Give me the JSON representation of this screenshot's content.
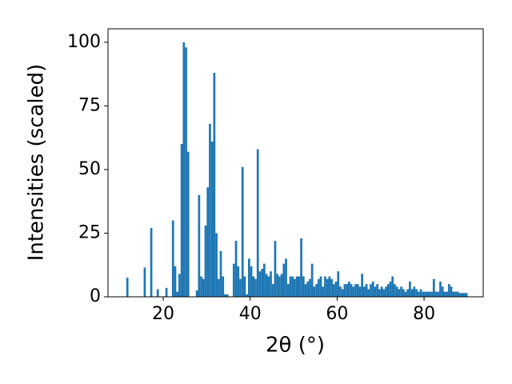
{
  "chart_data": {
    "type": "histogram",
    "x_label": "2θ (°)",
    "y_label": "Intensities (scaled)",
    "color": "#1f77b4",
    "grid": false,
    "xlim": [
      7.3,
      93.6
    ],
    "ylim": [
      0,
      105.3
    ],
    "xticks": [
      20,
      40,
      60,
      80
    ],
    "yticks": [
      0,
      25,
      50,
      75,
      100
    ],
    "bins": [
      10,
      10.5,
      11,
      11.5,
      12,
      12.5,
      13,
      13.5,
      14,
      14.5,
      15,
      15.5,
      16,
      16.5,
      17,
      17.5,
      18,
      18.5,
      19,
      19.5,
      20,
      20.5,
      21,
      21.5,
      22,
      22.5,
      23,
      23.5,
      24,
      24.5,
      25,
      25.5,
      26,
      26.5,
      27,
      27.5,
      28,
      28.5,
      29,
      29.5,
      30,
      30.5,
      31,
      31.5,
      32,
      32.5,
      33,
      33.5,
      34,
      34.5,
      35,
      35.5,
      36,
      36.5,
      37,
      37.5,
      38,
      38.5,
      39,
      39.5,
      40,
      40.5,
      41,
      41.5,
      42,
      42.5,
      43,
      43.5,
      44,
      44.5,
      45,
      45.5,
      46,
      46.5,
      47,
      47.5,
      48,
      48.5,
      49,
      49.5,
      50,
      50.5,
      51,
      51.5,
      52,
      52.5,
      53,
      53.5,
      54,
      54.5,
      55,
      55.5,
      56,
      56.5,
      57,
      57.5,
      58,
      58.5,
      59,
      59.5,
      60,
      60.5,
      61,
      61.5,
      62,
      62.5,
      63,
      63.5,
      64,
      64.5,
      65,
      65.5,
      66,
      66.5,
      67,
      67.5,
      68,
      68.5,
      69,
      69.5,
      70,
      70.5,
      71,
      71.5,
      72,
      72.5,
      73,
      73.5,
      74,
      74.5,
      75,
      75.5,
      76,
      76.5,
      77,
      77.5,
      78,
      78.5,
      79,
      79.5,
      80,
      80.5,
      81,
      81.5,
      82,
      82.5,
      83,
      83.5,
      84,
      84.5,
      85,
      85.5,
      86,
      86.5,
      87,
      87.5,
      88,
      88.5,
      89,
      89.5,
      90
    ],
    "values": [
      0,
      0,
      0,
      7.5,
      0,
      0,
      0,
      0,
      0,
      0,
      0,
      11.5,
      0,
      0,
      27,
      0,
      0,
      3,
      0,
      0,
      0,
      3.5,
      0,
      0,
      30,
      12,
      2,
      9,
      60,
      100,
      98,
      57,
      0,
      0,
      0,
      2.5,
      40,
      8,
      7,
      28,
      43,
      68,
      61,
      88,
      25,
      7,
      18,
      8,
      1,
      1,
      0,
      0,
      13,
      22,
      12,
      7,
      51,
      8,
      1,
      15,
      12,
      8,
      7,
      58,
      10,
      11,
      13,
      9,
      8,
      10,
      5,
      22,
      9,
      8,
      9,
      13,
      15,
      5,
      8,
      8,
      7,
      8,
      8,
      23,
      8,
      5,
      6,
      7,
      13,
      4,
      5,
      7,
      8,
      4,
      8,
      7,
      8,
      7,
      5,
      6,
      10,
      4,
      3,
      5,
      5,
      6,
      5,
      4,
      5,
      5,
      4,
      9,
      4,
      5,
      3,
      5,
      6,
      4,
      5,
      3,
      4,
      3,
      4,
      5,
      6,
      8,
      5,
      4,
      3,
      4,
      3,
      2,
      3,
      6,
      3,
      4,
      3,
      2,
      3,
      2,
      2,
      2,
      2,
      2,
      7,
      2,
      2,
      6,
      4,
      2,
      2,
      5,
      4,
      2,
      2,
      2,
      1.5,
      1.5,
      1.5,
      1.5
    ]
  }
}
